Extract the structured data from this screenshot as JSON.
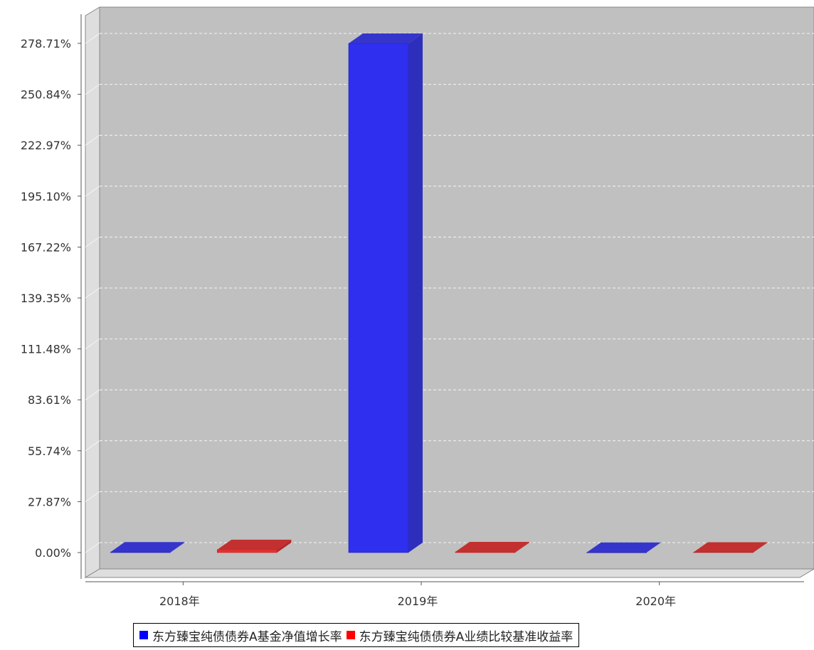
{
  "chart_data": {
    "type": "bar",
    "categories": [
      "2018年",
      "2019年",
      "2020年"
    ],
    "series": [
      {
        "name": "东方臻宝纯债债券A基金净值增长率",
        "color": "#0000ff",
        "values": [
          0.3,
          278.71,
          0.1
        ]
      },
      {
        "name": "东方臻宝纯债债券A业绩比较基准收益率",
        "color": "#ff0000",
        "values": [
          1.6,
          0.4,
          0.2
        ]
      }
    ],
    "yticks": [
      "0.00%",
      "27.87%",
      "55.74%",
      "83.61%",
      "111.48%",
      "139.35%",
      "167.22%",
      "195.10%",
      "222.97%",
      "250.84%",
      "278.71%"
    ],
    "ylim": [
      0,
      278.71
    ],
    "grid": true,
    "legend_position": "bottom",
    "background_color": "#c0c0c0"
  }
}
